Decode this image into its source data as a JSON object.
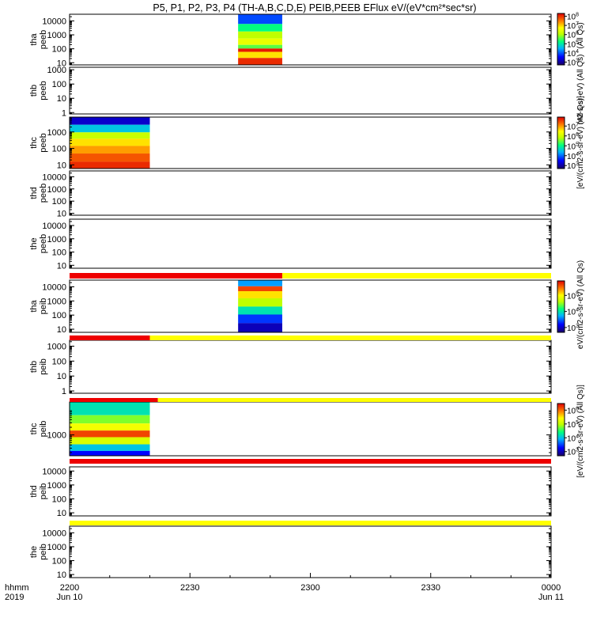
{
  "chart_data": {
    "type": "heatmap",
    "title": "P5, P1, P2, P3, P4 (TH-A,B,C,D,E) PEIB,PEEB EFlux eV/(eV*cm²*sec*sr)",
    "x_axis": {
      "row_labels": [
        "hhmm",
        "2019"
      ],
      "range_minutes": [
        0,
        120
      ],
      "ticks": [
        {
          "t": 0,
          "label": "2200",
          "sub": "Jun 10"
        },
        {
          "t": 30,
          "label": "2230",
          "sub": ""
        },
        {
          "t": 60,
          "label": "2300",
          "sub": ""
        },
        {
          "t": 90,
          "label": "2330",
          "sub": ""
        },
        {
          "t": 120,
          "label": "0000",
          "sub": "Jun 11"
        }
      ]
    },
    "panels": [
      {
        "probe": "tha",
        "species": "peeb",
        "ylim": [
          7,
          30000
        ],
        "ticks": [
          10,
          100,
          1000,
          10000
        ],
        "tick_labels": [
          "10",
          "100",
          "1000",
          "10000"
        ],
        "data_start": 42,
        "data_end": 53,
        "colorbar": {
          "zmin": 500,
          "zmax": 200000000,
          "tick_exp": [
            3,
            4,
            5,
            6,
            7,
            8
          ],
          "label": "(All Qs)"
        },
        "spectrum": [
          {
            "e": 12000,
            "c": 0.22
          },
          {
            "e": 3000,
            "c": 0.45
          },
          {
            "e": 1000,
            "c": 0.6
          },
          {
            "e": 300,
            "c": 0.68
          },
          {
            "e": 120,
            "c": 0.52
          },
          {
            "e": 90,
            "c": 0.97
          },
          {
            "e": 40,
            "c": 0.75
          },
          {
            "e": 12,
            "c": 0.95
          }
        ]
      },
      {
        "probe": "thb",
        "species": "peeb",
        "ylim": [
          0.8,
          1500
        ],
        "ticks": [
          1,
          10,
          100,
          1000
        ],
        "tick_labels": [
          "1",
          "10",
          "100",
          "1000"
        ],
        "colorbar_label": "m2-s-sr-eV) (All Qs)"
      },
      {
        "probe": "thc",
        "species": "peeb",
        "ylim": [
          6,
          8000
        ],
        "ticks": [
          10,
          100,
          1000
        ],
        "tick_labels": [
          "10",
          "100",
          "1000"
        ],
        "data_start": 0,
        "data_end": 20,
        "colorbar": {
          "zmin": 500,
          "zmax": 80000000,
          "tick_exp": [
            3,
            4,
            5,
            6,
            7
          ],
          "label": "[eV/(cm2-s-sr-eV) (All Qs)]"
        },
        "spectrum": [
          {
            "e": 5000,
            "c": 0.1
          },
          {
            "e": 1500,
            "c": 0.35
          },
          {
            "e": 600,
            "c": 0.62
          },
          {
            "e": 250,
            "c": 0.75
          },
          {
            "e": 80,
            "c": 0.82
          },
          {
            "e": 30,
            "c": 0.9
          },
          {
            "e": 8,
            "c": 0.95
          }
        ]
      },
      {
        "probe": "thd",
        "species": "peeb",
        "ylim": [
          7,
          30000
        ],
        "ticks": [
          10,
          100,
          1000,
          10000
        ],
        "tick_labels": [
          "10",
          "100",
          "1000",
          "10000"
        ]
      },
      {
        "probe": "the",
        "species": "peeb",
        "ylim": [
          6,
          30000
        ],
        "ticks": [
          10,
          100,
          1000,
          10000
        ],
        "tick_labels": [
          "10",
          "100",
          "1000",
          "10000"
        ]
      },
      {
        "probe": "tha",
        "species": "peib",
        "ylim": [
          6,
          30000
        ],
        "ticks": [
          10,
          100,
          1000,
          10000
        ],
        "tick_labels": [
          "10",
          "100",
          "1000",
          "10000"
        ],
        "data_start": 42,
        "data_end": 53,
        "bar": [
          {
            "from": 0,
            "to": 53,
            "color": "#ee0000"
          },
          {
            "from": 53,
            "to": 120,
            "color": "#ffff00"
          }
        ],
        "colorbar": {
          "zmin": 500,
          "zmax": 800000,
          "tick_exp": [
            3,
            4,
            5
          ],
          "label": "eV/(cm2-s-sr-eV) (All Qs)"
        },
        "spectrum": [
          {
            "e": 15000,
            "c": 0.3
          },
          {
            "e": 8000,
            "c": 0.92
          },
          {
            "e": 3000,
            "c": 0.75
          },
          {
            "e": 800,
            "c": 0.6
          },
          {
            "e": 200,
            "c": 0.4
          },
          {
            "e": 60,
            "c": 0.2
          },
          {
            "e": 12,
            "c": 0.08
          }
        ]
      },
      {
        "probe": "thb",
        "species": "peib",
        "ylim": [
          0.7,
          2500
        ],
        "ticks": [
          1,
          10,
          100,
          1000
        ],
        "tick_labels": [
          "1",
          "10",
          "100",
          "1000"
        ],
        "bar": [
          {
            "from": 0,
            "to": 20,
            "color": "#ee0000"
          },
          {
            "from": 20,
            "to": 120,
            "color": "#ffff00"
          }
        ]
      },
      {
        "probe": "thc",
        "species": "peib",
        "ylim": [
          150,
          20000
        ],
        "ticks": [
          1000
        ],
        "tick_labels": [
          "1000"
        ],
        "data_start": 0,
        "data_end": 20,
        "bar": [
          {
            "from": 0,
            "to": 22,
            "color": "#ee0000"
          },
          {
            "from": 22,
            "to": 120,
            "color": "#ffff00"
          }
        ],
        "colorbar": {
          "zmin": 500,
          "zmax": 3000000,
          "tick_exp": [
            3,
            4,
            5,
            6
          ],
          "label": "[eV/(cm2-s-sr-eV) (All Qs)]"
        },
        "spectrum": [
          {
            "e": 9000,
            "c": 0.4
          },
          {
            "e": 4000,
            "c": 0.55
          },
          {
            "e": 2000,
            "c": 0.7
          },
          {
            "e": 1100,
            "c": 0.92
          },
          {
            "e": 600,
            "c": 0.65
          },
          {
            "e": 300,
            "c": 0.35
          },
          {
            "e": 180,
            "c": 0.15
          }
        ]
      },
      {
        "probe": "thd",
        "species": "peib",
        "ylim": [
          6,
          20000
        ],
        "ticks": [
          10,
          100,
          1000,
          10000
        ],
        "tick_labels": [
          "10",
          "100",
          "1000",
          "10000"
        ],
        "bar": [
          {
            "from": 0,
            "to": 120,
            "color": "#ee0000"
          }
        ]
      },
      {
        "probe": "the",
        "species": "peib",
        "ylim": [
          6,
          30000
        ],
        "ticks": [
          10,
          100,
          1000,
          10000
        ],
        "tick_labels": [
          "10",
          "100",
          "1000",
          "10000"
        ],
        "bar": [
          {
            "from": 0,
            "to": 120,
            "color": "#ffff00"
          }
        ]
      }
    ],
    "colormap": "rainbow"
  }
}
